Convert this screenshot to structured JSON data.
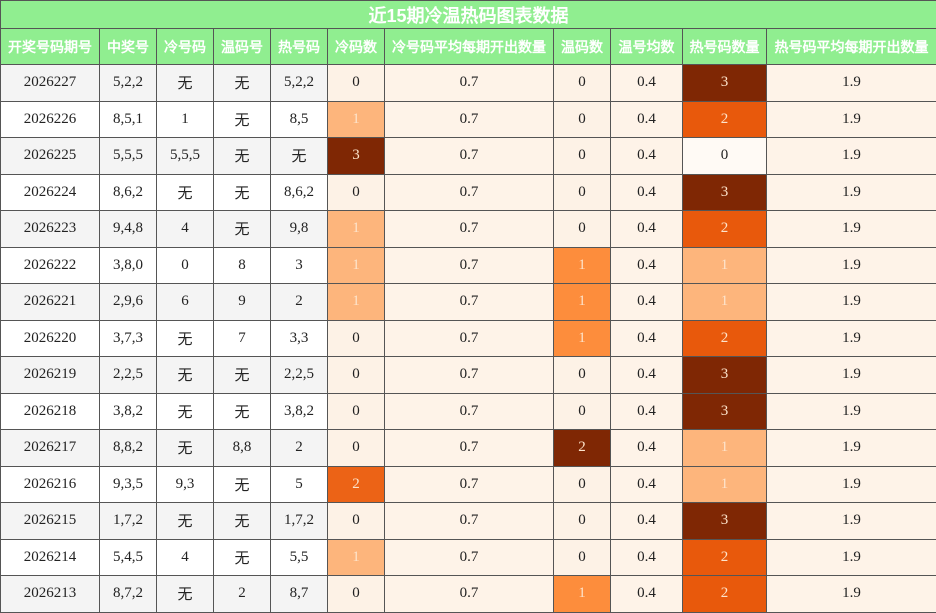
{
  "title": "近15期冷温热码图表数据",
  "table": {
    "header": [
      "开奖号码期号",
      "中奖号",
      "冷号码",
      "温码号",
      "热号码",
      "冷码数",
      "冷号码平均每期开出数量",
      "温码数",
      "温号均数",
      "热号码数量",
      "热号码平均每期开出数量"
    ],
    "rows": [
      [
        "2026227",
        "5,2,2",
        "无",
        "无",
        "5,2,2",
        0,
        0.7,
        0,
        0.4,
        3,
        1.9
      ],
      [
        "2026226",
        "8,5,1",
        "1",
        "无",
        "8,5",
        1,
        0.7,
        0,
        0.4,
        2,
        1.9
      ],
      [
        "2026225",
        "5,5,5",
        "5,5,5",
        "无",
        "无",
        3,
        0.7,
        0,
        0.4,
        0,
        1.9
      ],
      [
        "2026224",
        "8,6,2",
        "无",
        "无",
        "8,6,2",
        0,
        0.7,
        0,
        0.4,
        3,
        1.9
      ],
      [
        "2026223",
        "9,4,8",
        "4",
        "无",
        "9,8",
        1,
        0.7,
        0,
        0.4,
        2,
        1.9
      ],
      [
        "2026222",
        "3,8,0",
        "0",
        "8",
        "3",
        1,
        0.7,
        1,
        0.4,
        1,
        1.9
      ],
      [
        "2026221",
        "2,9,6",
        "6",
        "9",
        "2",
        1,
        0.7,
        1,
        0.4,
        1,
        1.9
      ],
      [
        "2026220",
        "3,7,3",
        "无",
        "7",
        "3,3",
        0,
        0.7,
        1,
        0.4,
        2,
        1.9
      ],
      [
        "2026219",
        "2,2,5",
        "无",
        "无",
        "2,2,5",
        0,
        0.7,
        0,
        0.4,
        3,
        1.9
      ],
      [
        "2026218",
        "3,8,2",
        "无",
        "无",
        "3,8,2",
        0,
        0.7,
        0,
        0.4,
        3,
        1.9
      ],
      [
        "2026217",
        "8,8,2",
        "无",
        "8,8",
        "2",
        0,
        0.7,
        2,
        0.4,
        1,
        1.9
      ],
      [
        "2026216",
        "9,3,5",
        "9,3",
        "无",
        "5",
        2,
        0.7,
        0,
        0.4,
        1,
        1.9
      ],
      [
        "2026215",
        "1,7,2",
        "无",
        "无",
        "1,7,2",
        0,
        0.7,
        0,
        0.4,
        3,
        1.9
      ],
      [
        "2026214",
        "5,4,5",
        "4",
        "无",
        "5,5",
        1,
        0.7,
        0,
        0.4,
        2,
        1.9
      ],
      [
        "2026213",
        "8,7,2",
        "无",
        "2",
        "8,7",
        0,
        0.7,
        1,
        0.4,
        2,
        1.9
      ]
    ]
  }
}
